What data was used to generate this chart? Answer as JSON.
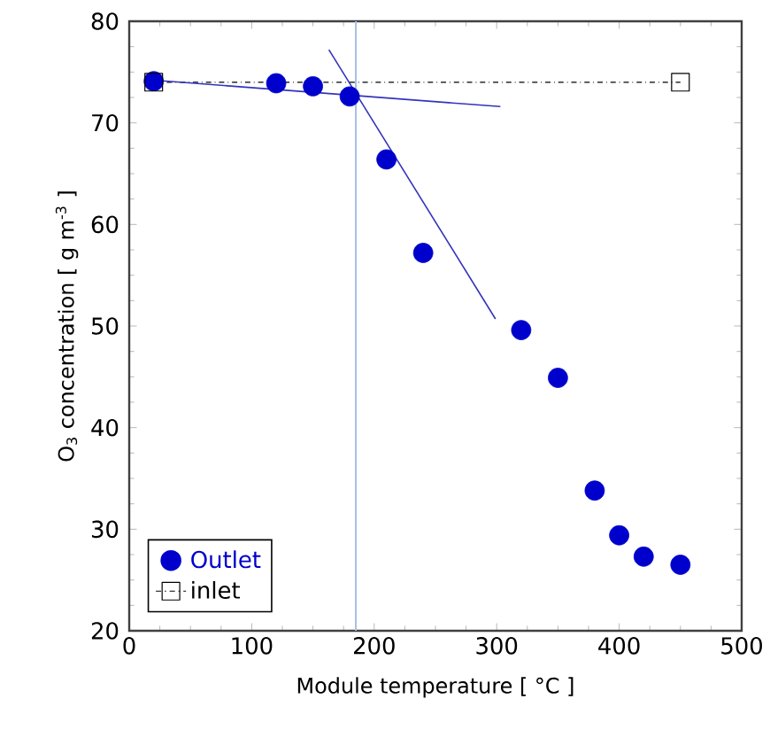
{
  "chart_data": {
    "type": "scatter",
    "xlabel": "Module temperature [ °C ]",
    "ylabel": "O$_{3}$ concentration [ g m$^{-3}$ ]",
    "xlim": [
      0,
      500
    ],
    "ylim": [
      20,
      80
    ],
    "xticks": [
      0,
      100,
      200,
      300,
      400,
      500
    ],
    "yticks": [
      20,
      30,
      40,
      50,
      60,
      70,
      80
    ],
    "grid": false,
    "legend": "bottom left",
    "ref_lines": [
      {
        "axis": "x",
        "value": 185,
        "color": "#a8c0e0"
      }
    ],
    "series": [
      {
        "name": "Outlet",
        "color": "#0000cc",
        "marker": "circle",
        "x": [
          20,
          120,
          150,
          180,
          210,
          240,
          320,
          350,
          380,
          400,
          420,
          450
        ],
        "values": [
          74.1,
          73.9,
          73.6,
          72.6,
          66.4,
          57.2,
          49.6,
          44.9,
          33.8,
          29.4,
          27.3,
          26.5
        ]
      },
      {
        "name": "inlet",
        "type": "line",
        "color": "#000000",
        "marker": "square",
        "line_style": "dashed",
        "x": [
          20,
          450
        ],
        "values": [
          74,
          74
        ]
      },
      {
        "type": "line",
        "color": "#3333bb",
        "marker": "none",
        "line_style": "solid",
        "x": [
          20,
          303
        ],
        "values": [
          74.2,
          71.6
        ]
      },
      {
        "type": "line",
        "color": "#3333bb",
        "marker": "none",
        "line_style": "solid",
        "x": [
          163,
          299
        ],
        "values": [
          77.2,
          50.7
        ]
      }
    ]
  }
}
